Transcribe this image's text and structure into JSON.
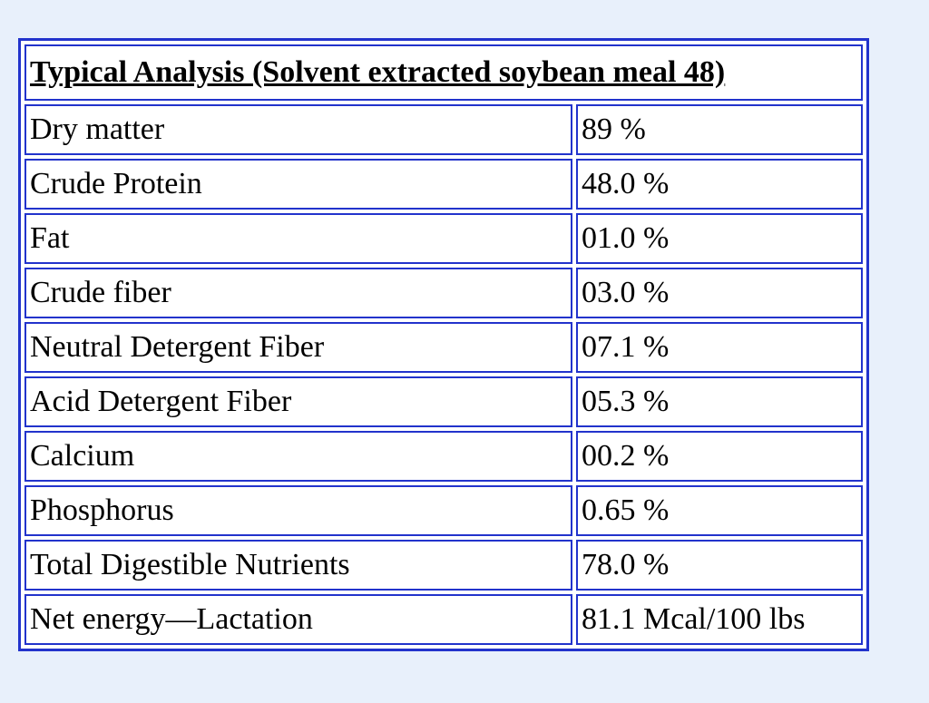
{
  "table": {
    "title": "Typical Analysis (Solvent extracted soybean meal 48)",
    "rows": [
      {
        "label": "Dry matter",
        "value": "89 %"
      },
      {
        "label": "Crude Protein",
        "value": "48.0 %"
      },
      {
        "label": "Fat",
        "value": "01.0 %"
      },
      {
        "label": "Crude fiber",
        "value": "03.0 %"
      },
      {
        "label": "Neutral Detergent Fiber",
        "value": "07.1 %"
      },
      {
        "label": "Acid Detergent Fiber",
        "value": "05.3 %"
      },
      {
        "label": "Calcium",
        "value": "00.2 %"
      },
      {
        "label": "Phosphorus",
        "value": "0.65 %"
      },
      {
        "label": "Total Digestible Nutrients",
        "value": "78.0 %"
      },
      {
        "label": "Net energy—Lactation",
        "value": "81.1 Mcal/100 lbs"
      }
    ]
  },
  "colors": {
    "background": "#e8f0fb",
    "border": "#2233cc",
    "cell": "#ffffff",
    "text": "#000000"
  }
}
